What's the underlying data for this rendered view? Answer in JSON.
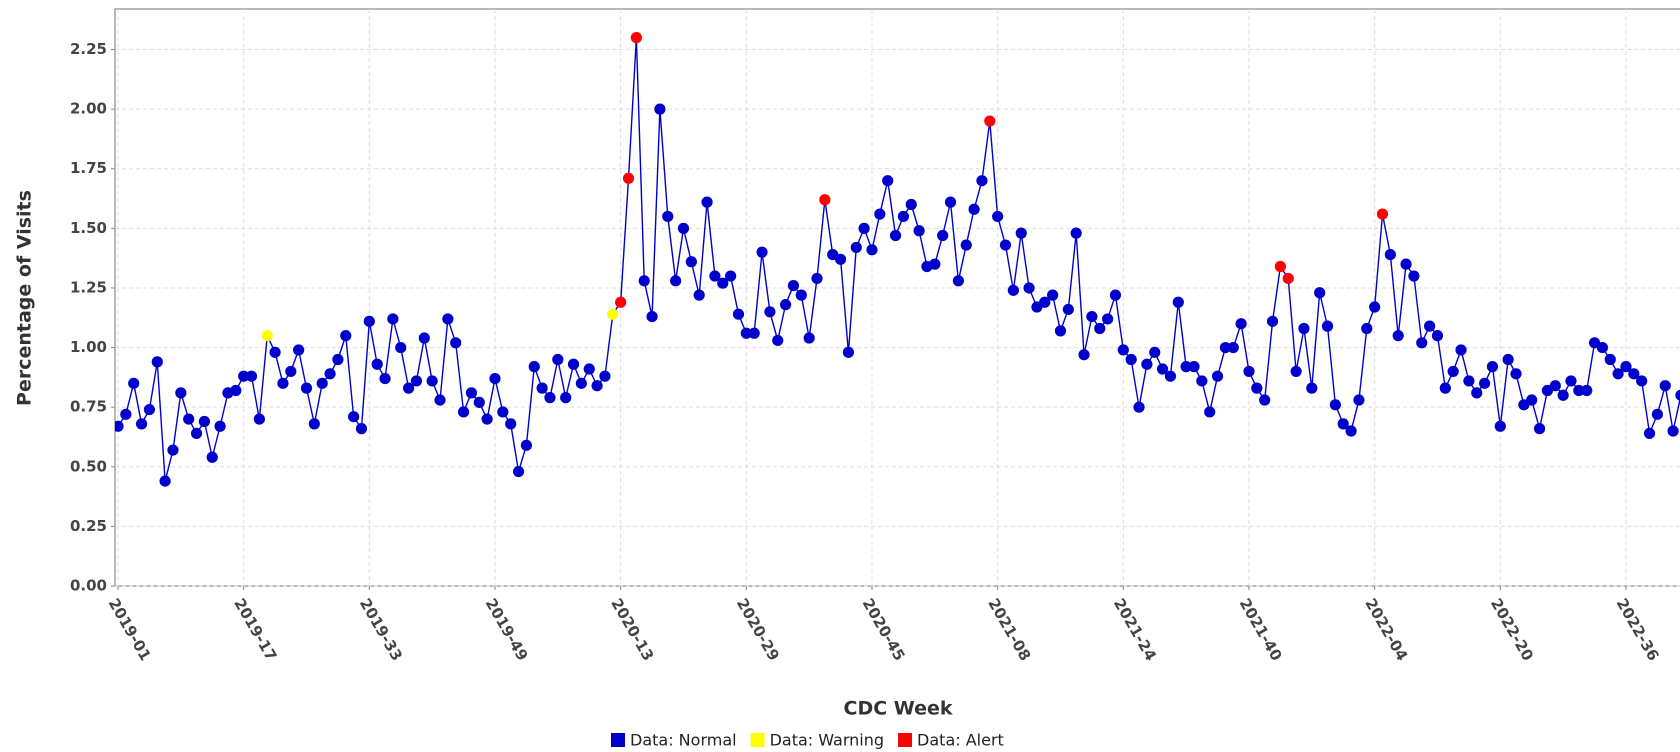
{
  "chart_data": {
    "type": "line",
    "x_label": "CDC Week",
    "y_label": "Percentage of Visits",
    "categories": [
      "2019-01",
      null,
      null,
      null,
      null,
      null,
      null,
      null,
      null,
      null,
      null,
      null,
      null,
      null,
      null,
      null,
      "2019-17",
      null,
      null,
      null,
      null,
      null,
      null,
      null,
      null,
      null,
      null,
      null,
      null,
      null,
      null,
      null,
      "2019-33",
      null,
      null,
      null,
      null,
      null,
      null,
      null,
      null,
      null,
      null,
      null,
      null,
      null,
      null,
      null,
      "2019-49",
      null,
      null,
      null,
      null,
      null,
      null,
      null,
      null,
      null,
      null,
      null,
      null,
      null,
      null,
      null,
      "2020-13",
      null,
      null,
      null,
      null,
      null,
      null,
      null,
      null,
      null,
      null,
      null,
      null,
      null,
      null,
      null,
      "2020-29",
      null,
      null,
      null,
      null,
      null,
      null,
      null,
      null,
      null,
      null,
      null,
      null,
      null,
      null,
      null,
      "2020-45",
      null,
      null,
      null,
      null,
      null,
      null,
      null,
      null,
      null,
      null,
      null,
      null,
      null,
      null,
      null,
      "2021-08",
      null,
      null,
      null,
      null,
      null,
      null,
      null,
      null,
      null,
      null,
      null,
      null,
      null,
      null,
      null,
      "2021-24",
      null,
      null,
      null,
      null,
      null,
      null,
      null,
      null,
      null,
      null,
      null,
      null,
      null,
      null,
      null,
      "2021-40",
      null,
      null,
      null,
      null,
      null,
      null,
      null,
      null,
      null,
      null,
      null,
      null,
      null,
      null,
      null,
      "2022-04",
      null,
      null,
      null,
      null,
      null,
      null,
      null,
      null,
      null,
      null,
      null,
      null,
      null,
      null,
      null,
      "2022-20",
      null,
      null,
      null,
      null,
      null,
      null,
      null,
      null,
      null,
      null,
      null,
      null,
      null,
      null,
      null,
      "2022-36",
      null,
      null,
      null,
      null,
      null,
      null,
      null
    ],
    "series": [
      {
        "name": "Data: Normal",
        "color": "#0000cc",
        "values": [
          0.67,
          0.72,
          0.85,
          0.68,
          0.74,
          0.94,
          0.44,
          0.57,
          0.81,
          0.7,
          0.64,
          0.69,
          0.54,
          0.67,
          0.81,
          0.82,
          0.88,
          0.88,
          0.7,
          null,
          0.98,
          0.85,
          0.9,
          0.99,
          0.83,
          0.68,
          0.85,
          0.89,
          0.95,
          1.05,
          0.71,
          0.66,
          1.11,
          0.93,
          0.87,
          1.12,
          1.0,
          0.83,
          0.86,
          1.04,
          0.86,
          0.78,
          1.12,
          1.02,
          0.73,
          0.81,
          0.77,
          0.7,
          0.87,
          0.73,
          0.68,
          0.48,
          0.59,
          0.92,
          0.83,
          0.79,
          0.95,
          0.79,
          0.93,
          0.85,
          0.91,
          0.84,
          0.88,
          null,
          null,
          null,
          null,
          1.28,
          1.13,
          2.0,
          1.55,
          1.28,
          1.5,
          1.36,
          1.22,
          1.61,
          1.3,
          1.27,
          1.3,
          1.14,
          1.06,
          1.06,
          1.4,
          1.15,
          1.03,
          1.18,
          1.26,
          1.22,
          1.04,
          1.29,
          null,
          1.39,
          1.37,
          0.98,
          1.42,
          1.5,
          1.41,
          1.56,
          1.7,
          1.47,
          1.55,
          1.6,
          1.49,
          1.34,
          1.35,
          1.47,
          1.61,
          1.28,
          1.43,
          1.58,
          1.7,
          null,
          1.55,
          1.43,
          1.24,
          1.48,
          1.25,
          1.17,
          1.19,
          1.22,
          1.07,
          1.16,
          1.48,
          0.97,
          1.13,
          1.08,
          1.12,
          1.22,
          0.99,
          0.95,
          0.75,
          0.93,
          0.98,
          0.91,
          0.88,
          1.19,
          0.92,
          0.92,
          0.86,
          0.73,
          0.88,
          1.0,
          1.0,
          1.1,
          0.9,
          0.83,
          0.78,
          1.11,
          null,
          null,
          0.9,
          1.08,
          0.83,
          1.23,
          1.09,
          0.76,
          0.68,
          0.65,
          0.78,
          1.08,
          1.17,
          null,
          1.39,
          1.05,
          1.35,
          1.3,
          1.02,
          1.09,
          1.05,
          0.83,
          0.9,
          0.99,
          0.86,
          0.81,
          0.85,
          0.92,
          0.67,
          0.95,
          0.89,
          0.76,
          0.78,
          0.66,
          0.82,
          0.84,
          0.8,
          0.86,
          0.82,
          0.82,
          1.02,
          1.0,
          0.95,
          0.89,
          0.92,
          0.89,
          0.86,
          0.64,
          0.72,
          0.84,
          0.65,
          0.8
        ]
      },
      {
        "name": "Data: Warning",
        "color": "#ffff00",
        "values": [
          null,
          null,
          null,
          null,
          null,
          null,
          null,
          null,
          null,
          null,
          null,
          null,
          null,
          null,
          null,
          null,
          null,
          null,
          null,
          1.05,
          null,
          null,
          null,
          null,
          null,
          null,
          null,
          null,
          null,
          null,
          null,
          null,
          null,
          null,
          null,
          null,
          null,
          null,
          null,
          null,
          null,
          null,
          null,
          null,
          null,
          null,
          null,
          null,
          null,
          null,
          null,
          null,
          null,
          null,
          null,
          null,
          null,
          null,
          null,
          null,
          null,
          null,
          null,
          1.14,
          null,
          null,
          null,
          null,
          null,
          null,
          null,
          null,
          null,
          null,
          null,
          null,
          null,
          null,
          null,
          null,
          null,
          null,
          null,
          null,
          null,
          null,
          null,
          null,
          null,
          null,
          null,
          null,
          null,
          null,
          null,
          null,
          null,
          null,
          null,
          null,
          null,
          null,
          null,
          null,
          null,
          null,
          null,
          null,
          null,
          null,
          null,
          null,
          null,
          null,
          null,
          null,
          null,
          null,
          null,
          null,
          null,
          null,
          null,
          null,
          null,
          null,
          null,
          null,
          null,
          null,
          null,
          null,
          null,
          null,
          null,
          null,
          null,
          null,
          null,
          null,
          null,
          null,
          null,
          null,
          null,
          null,
          null,
          null,
          null,
          null,
          null,
          null,
          null,
          null,
          null,
          null,
          null,
          null,
          null,
          null,
          null,
          null,
          null,
          null,
          null,
          null,
          null,
          null,
          null,
          null,
          null,
          null,
          null,
          null,
          null,
          null,
          null,
          null,
          null,
          null,
          null,
          null,
          null,
          null,
          null,
          null,
          null,
          null,
          null,
          null,
          null,
          null,
          null,
          null,
          null,
          null,
          null,
          null,
          null,
          null
        ]
      },
      {
        "name": "Data: Alert",
        "color": "#ff0000",
        "values": [
          null,
          null,
          null,
          null,
          null,
          null,
          null,
          null,
          null,
          null,
          null,
          null,
          null,
          null,
          null,
          null,
          null,
          null,
          null,
          null,
          null,
          null,
          null,
          null,
          null,
          null,
          null,
          null,
          null,
          null,
          null,
          null,
          null,
          null,
          null,
          null,
          null,
          null,
          null,
          null,
          null,
          null,
          null,
          null,
          null,
          null,
          null,
          null,
          null,
          null,
          null,
          null,
          null,
          null,
          null,
          null,
          null,
          null,
          null,
          null,
          null,
          null,
          null,
          null,
          1.19,
          1.71,
          2.3,
          null,
          null,
          null,
          null,
          null,
          null,
          null,
          null,
          null,
          null,
          null,
          null,
          null,
          null,
          null,
          null,
          null,
          null,
          null,
          null,
          null,
          null,
          null,
          1.62,
          null,
          null,
          null,
          null,
          null,
          null,
          null,
          null,
          null,
          null,
          null,
          null,
          null,
          null,
          null,
          null,
          null,
          null,
          null,
          null,
          1.95,
          null,
          null,
          null,
          null,
          null,
          null,
          null,
          null,
          null,
          null,
          null,
          null,
          null,
          null,
          null,
          null,
          null,
          null,
          null,
          null,
          null,
          null,
          null,
          null,
          null,
          null,
          null,
          null,
          null,
          null,
          null,
          null,
          null,
          null,
          null,
          null,
          1.34,
          1.29,
          null,
          null,
          null,
          null,
          null,
          null,
          null,
          null,
          null,
          null,
          null,
          1.56,
          null,
          null,
          null,
          null,
          null,
          null,
          null,
          null,
          null,
          null,
          null,
          null,
          null,
          null,
          null,
          null,
          null,
          null,
          null,
          null,
          null,
          null,
          null,
          null,
          null,
          null,
          null,
          null,
          null,
          null,
          null,
          null,
          null,
          null,
          null,
          null,
          null,
          null
        ]
      }
    ],
    "ylim": [
      0,
      2.42
    ],
    "yticks": [
      {
        "value": 0,
        "label": "0.00"
      },
      0.25,
      {
        "value": 0.5,
        "label": "0.50"
      },
      0.75,
      {
        "value": 1,
        "label": "1.00"
      },
      1.25,
      {
        "value": 1.5,
        "label": "1.50"
      },
      1.75,
      {
        "value": 2,
        "label": "2.00"
      },
      2.25
    ],
    "grid": true,
    "legend": "bottom"
  }
}
